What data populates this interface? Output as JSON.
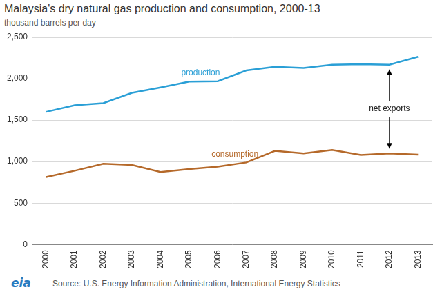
{
  "chart_data": {
    "type": "line",
    "title": "Malaysia's dry natural gas production and consumption, 2000-13",
    "y_label": "thousand barrels per day",
    "source": "Source:  U.S. Energy Information Administration, International Energy Statistics",
    "logo": "eia",
    "categories": [
      "2000",
      "2001",
      "2002",
      "2003",
      "2004",
      "2005",
      "2006",
      "2007",
      "2008",
      "2009",
      "2010",
      "2011",
      "2012",
      "2013"
    ],
    "series": [
      {
        "name": "production",
        "color": "#2a9fd6",
        "values": [
          1600,
          1680,
          1705,
          1830,
          1895,
          1965,
          1970,
          2100,
          2145,
          2130,
          2170,
          2175,
          2170,
          2265
        ]
      },
      {
        "name": "consumption",
        "color": "#b5692a",
        "values": [
          815,
          890,
          975,
          960,
          875,
          910,
          940,
          990,
          1130,
          1100,
          1140,
          1080,
          1100,
          1085
        ]
      }
    ],
    "annotations": [
      {
        "text": "net exports",
        "x": "2012"
      }
    ],
    "ylim": [
      0,
      2500
    ],
    "yticks": [
      0,
      500,
      {
        "value": 1000,
        "label": "1,000"
      },
      {
        "value": 1500,
        "label": "1,500"
      },
      {
        "value": 2000,
        "label": "2,000"
      },
      {
        "value": 2500,
        "label": "2,500"
      }
    ],
    "grid": true
  }
}
